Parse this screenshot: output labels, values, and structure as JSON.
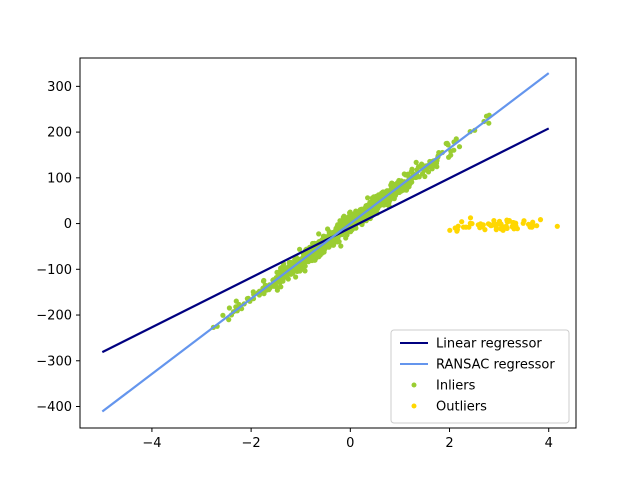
{
  "chart_data": {
    "type": "scatter",
    "title": "",
    "xlabel": "",
    "ylabel": "",
    "xlim": [
      -5.45,
      4.55
    ],
    "ylim": [
      -447,
      362
    ],
    "x_ticks": [
      -4,
      -2,
      0,
      2,
      4
    ],
    "y_ticks": [
      -400,
      -300,
      -200,
      -100,
      0,
      100,
      200,
      300
    ],
    "x_tick_labels": [
      "−4",
      "−2",
      "0",
      "2",
      "4"
    ],
    "y_tick_labels": [
      "−400",
      "−300",
      "−200",
      "−100",
      "0",
      "100",
      "200",
      "300"
    ],
    "grid": false,
    "legend_position": "lower-right",
    "series": [
      {
        "name": "Linear regressor",
        "kind": "line",
        "color": "#000080",
        "x": [
          -5,
          4
        ],
        "y": [
          -281,
          208
        ]
      },
      {
        "name": "RANSAC regressor",
        "kind": "line",
        "color": "#6495ed",
        "x": [
          -5,
          4
        ],
        "y": [
          -411,
          329
        ]
      },
      {
        "name": "Inliers",
        "kind": "scatter",
        "color": "#9acd32",
        "x_range": [
          -3.0,
          2.8
        ],
        "slope": 82,
        "intercept": -0.5,
        "noise": 10,
        "count": 900
      },
      {
        "name": "Outliers",
        "kind": "scatter",
        "color": "#ffd700",
        "x_range": [
          1.7,
          4.2
        ],
        "y_center": -5,
        "y_spread": 12,
        "count": 60
      }
    ]
  }
}
